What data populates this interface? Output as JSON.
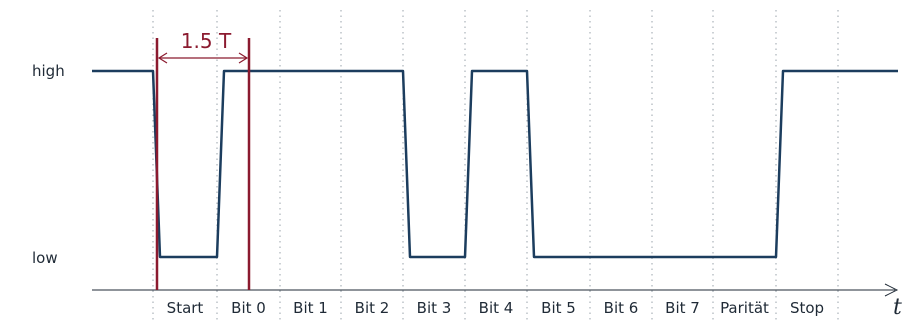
{
  "levels": {
    "high": "high",
    "low": "low"
  },
  "axis_label": "t",
  "measure_label": "1.5 T",
  "bits": [
    {
      "label": "Start"
    },
    {
      "label": "Bit 0"
    },
    {
      "label": "Bit 1"
    },
    {
      "label": "Bit 2"
    },
    {
      "label": "Bit 3"
    },
    {
      "label": "Bit 4"
    },
    {
      "label": "Bit 5"
    },
    {
      "label": "Bit 6"
    },
    {
      "label": "Bit 7"
    },
    {
      "label": "Parität"
    },
    {
      "label": "Stop"
    }
  ],
  "signal_levels": [
    0,
    1,
    1,
    1,
    0,
    1,
    0,
    0,
    0,
    0,
    1
  ],
  "colors": {
    "signal": "#1c3d5e",
    "measure": "#8b1a2f",
    "grid": "#9aa3ab",
    "text": "#1f2a36"
  }
}
